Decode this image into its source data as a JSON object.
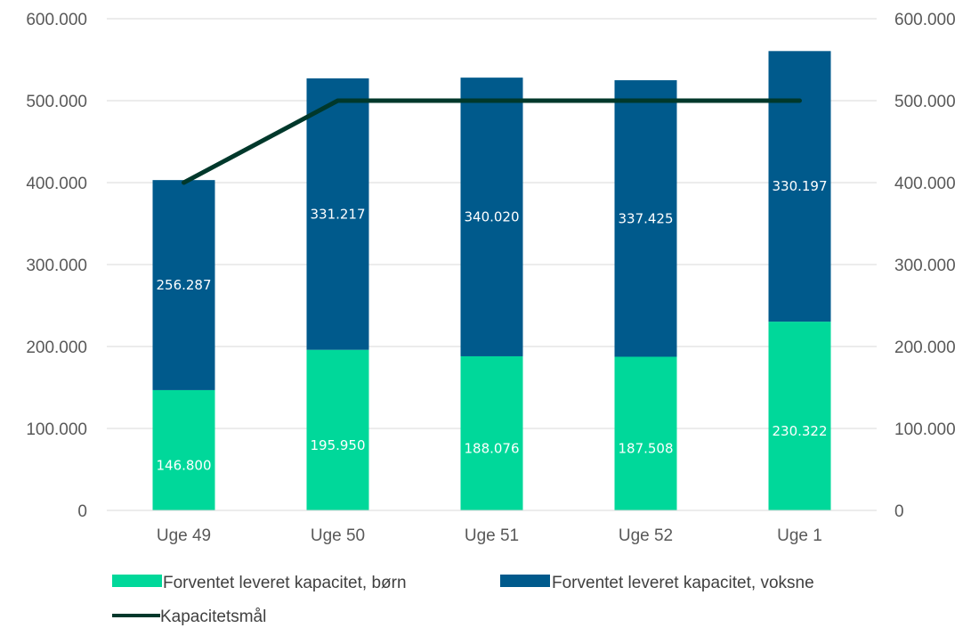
{
  "chart_data": {
    "type": "bar",
    "stacked": true,
    "categories": [
      "Uge 49",
      "Uge 50",
      "Uge 51",
      "Uge 52",
      "Uge 1"
    ],
    "series": [
      {
        "name": "Forventet leveret kapacitet, børn",
        "kind": "bar",
        "color": "#00d89a",
        "values": [
          146800,
          195950,
          188076,
          187508,
          230322
        ],
        "labels": [
          "146.800",
          "195.950",
          "188.076",
          "187.508",
          "230.322"
        ]
      },
      {
        "name": "Forventet leveret kapacitet, voksne",
        "kind": "bar",
        "color": "#005a8c",
        "values": [
          256287,
          331217,
          340020,
          337425,
          330197
        ],
        "labels": [
          "256.287",
          "331.217",
          "340.020",
          "337.425",
          "330.197"
        ]
      },
      {
        "name": "Kapacitetsmål",
        "kind": "line",
        "color": "#00382b",
        "values": [
          400000,
          500000,
          500000,
          500000,
          500000
        ]
      }
    ],
    "ylim": [
      0,
      600000
    ],
    "y_ticks": [
      0,
      100000,
      200000,
      300000,
      400000,
      500000,
      600000
    ],
    "y_tick_labels": [
      "0",
      "100.000",
      "200.000",
      "300.000",
      "400.000",
      "500.000",
      "600.000"
    ],
    "y2_tick_labels": [
      "0",
      "100.000",
      "200.000",
      "300.000",
      "400.000",
      "500.000",
      "600.000"
    ],
    "grid": true,
    "legend_position": "bottom",
    "title": "",
    "xlabel": "",
    "ylabel": ""
  }
}
